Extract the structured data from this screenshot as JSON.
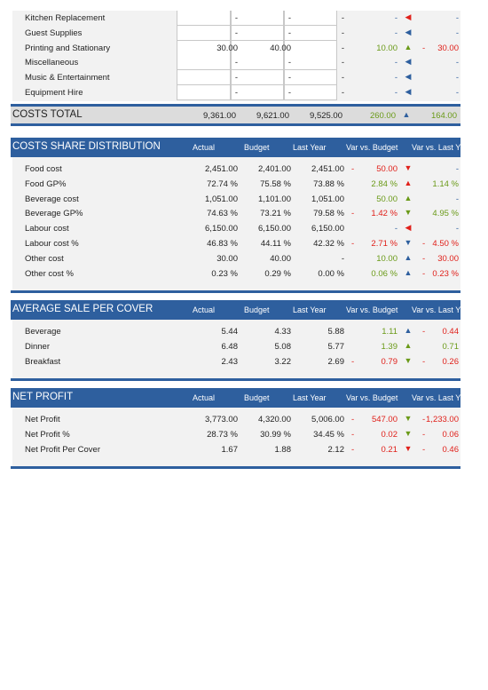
{
  "cost_rows": [
    {
      "label": "Kitchen Replacement",
      "actual": "-",
      "budget": "-",
      "last_year": "-",
      "var_budget": "-",
      "var_budget_dash": "",
      "var_budget_color": "blue",
      "arrow": "◀",
      "arrow_color": "red",
      "var_ly_dash": "",
      "var_ly": "-",
      "var_ly_color": "blue"
    },
    {
      "label": "Guest Supplies",
      "actual": "-",
      "budget": "-",
      "last_year": "-",
      "var_budget": "-",
      "var_budget_dash": "",
      "var_budget_color": "blue",
      "arrow": "◀",
      "arrow_color": "blue",
      "var_ly_dash": "",
      "var_ly": "-",
      "var_ly_color": "blue"
    },
    {
      "label": "Printing and Stationary",
      "actual": "30.00",
      "budget": "40.00",
      "last_year": "-",
      "var_budget": "10.00",
      "var_budget_dash": "",
      "var_budget_color": "green",
      "arrow": "▲",
      "arrow_color": "green",
      "var_ly_dash": "-",
      "var_ly": "30.00",
      "var_ly_color": "red"
    },
    {
      "label": "Miscellaneous",
      "actual": "-",
      "budget": "-",
      "last_year": "-",
      "var_budget": "-",
      "var_budget_dash": "",
      "var_budget_color": "blue",
      "arrow": "◀",
      "arrow_color": "blue",
      "var_ly_dash": "",
      "var_ly": "-",
      "var_ly_color": "blue"
    },
    {
      "label": "Music & Entertainment",
      "actual": "-",
      "budget": "-",
      "last_year": "-",
      "var_budget": "-",
      "var_budget_dash": "",
      "var_budget_color": "blue",
      "arrow": "◀",
      "arrow_color": "blue",
      "var_ly_dash": "",
      "var_ly": "-",
      "var_ly_color": "blue"
    },
    {
      "label": "Equipment Hire",
      "actual": "-",
      "budget": "-",
      "last_year": "-",
      "var_budget": "-",
      "var_budget_dash": "",
      "var_budget_color": "blue",
      "arrow": "◀",
      "arrow_color": "blue",
      "var_ly_dash": "",
      "var_ly": "-",
      "var_ly_color": "blue"
    }
  ],
  "costs_total": {
    "label": "COSTS TOTAL",
    "actual": "9,361.00",
    "budget": "9,621.00",
    "last_year": "9,525.00",
    "var_budget": "260.00",
    "arrow": "▲",
    "var_ly": "164.00"
  },
  "column_headers": {
    "actual": "Actual",
    "budget": "Budget",
    "last_year": "Last Year",
    "var_budget": "Var vs. Budget",
    "var_ly": "Var vs. Last Y"
  },
  "sections": [
    {
      "title": "COSTS SHARE DISTRIBUTION",
      "rows": [
        {
          "label": "Food cost",
          "actual": "2,451.00",
          "budget": "2,401.00",
          "last_year": "2,451.00",
          "var_budget_dash": "-",
          "var_budget": "50.00",
          "var_budget_color": "red",
          "arrow": "▼",
          "arrow_color": "red",
          "var_ly_dash": "",
          "var_ly": "-",
          "var_ly_color": "blue"
        },
        {
          "label": "Food GP%",
          "actual": "72.74 %",
          "budget": "75.58 %",
          "last_year": "73.88 %",
          "var_budget_dash": "",
          "var_budget": "2.84 %",
          "var_budget_color": "green",
          "arrow": "▲",
          "arrow_color": "red",
          "var_ly_dash": "",
          "var_ly": "1.14 %",
          "var_ly_color": "green"
        },
        {
          "label": "Beverage cost",
          "actual": "1,051.00",
          "budget": "1,101.00",
          "last_year": "1,051.00",
          "var_budget_dash": "",
          "var_budget": "50.00",
          "var_budget_color": "green",
          "arrow": "▲",
          "arrow_color": "green",
          "var_ly_dash": "",
          "var_ly": "-",
          "var_ly_color": "blue"
        },
        {
          "label": "Beverage GP%",
          "actual": "74.63 %",
          "budget": "73.21 %",
          "last_year": "79.58 %",
          "var_budget_dash": "-",
          "var_budget": "1.42 %",
          "var_budget_color": "red",
          "arrow": "▼",
          "arrow_color": "green",
          "var_ly_dash": "",
          "var_ly": "4.95 %",
          "var_ly_color": "green"
        },
        {
          "label": "Labour cost",
          "actual": "6,150.00",
          "budget": "6,150.00",
          "last_year": "6,150.00",
          "var_budget_dash": "",
          "var_budget": "-",
          "var_budget_color": "blue",
          "arrow": "◀",
          "arrow_color": "red",
          "var_ly_dash": "",
          "var_ly": "-",
          "var_ly_color": "blue"
        },
        {
          "label": "Labour cost %",
          "actual": "46.83 %",
          "budget": "44.11 %",
          "last_year": "42.32 %",
          "var_budget_dash": "-",
          "var_budget": "2.71 %",
          "var_budget_color": "red",
          "arrow": "▼",
          "arrow_color": "blue",
          "var_ly_dash": "-",
          "var_ly": "4.50 %",
          "var_ly_color": "red"
        },
        {
          "label": "Other cost",
          "actual": "30.00",
          "budget": "40.00",
          "last_year": "-",
          "var_budget_dash": "",
          "var_budget": "10.00",
          "var_budget_color": "green",
          "arrow": "▲",
          "arrow_color": "blue",
          "var_ly_dash": "-",
          "var_ly": "30.00",
          "var_ly_color": "red"
        },
        {
          "label": "Other cost %",
          "actual": "0.23 %",
          "budget": "0.29 %",
          "last_year": "0.00 %",
          "var_budget_dash": "",
          "var_budget": "0.06 %",
          "var_budget_color": "green",
          "arrow": "▲",
          "arrow_color": "blue",
          "var_ly_dash": "-",
          "var_ly": "0.23 %",
          "var_ly_color": "red"
        }
      ]
    },
    {
      "title": "AVERAGE SALE PER COVER",
      "rows": [
        {
          "label": "Beverage",
          "actual": "5.44",
          "budget": "4.33",
          "last_year": "5.88",
          "var_budget_dash": "",
          "var_budget": "1.11",
          "var_budget_color": "green",
          "arrow": "▲",
          "arrow_color": "blue",
          "var_ly_dash": "-",
          "var_ly": "0.44",
          "var_ly_color": "red"
        },
        {
          "label": "Dinner",
          "actual": "6.48",
          "budget": "5.08",
          "last_year": "5.77",
          "var_budget_dash": "",
          "var_budget": "1.39",
          "var_budget_color": "green",
          "arrow": "▲",
          "arrow_color": "green",
          "var_ly_dash": "",
          "var_ly": "0.71",
          "var_ly_color": "green"
        },
        {
          "label": "Breakfast",
          "actual": "2.43",
          "budget": "3.22",
          "last_year": "2.69",
          "var_budget_dash": "-",
          "var_budget": "0.79",
          "var_budget_color": "red",
          "arrow": "▼",
          "arrow_color": "green",
          "var_ly_dash": "-",
          "var_ly": "0.26",
          "var_ly_color": "red"
        }
      ]
    },
    {
      "title": "NET PROFIT",
      "rows": [
        {
          "label": "Net Profit",
          "actual": "3,773.00",
          "budget": "4,320.00",
          "last_year": "5,006.00",
          "var_budget_dash": "-",
          "var_budget": "547.00",
          "var_budget_color": "red",
          "arrow": "▼",
          "arrow_color": "green",
          "var_ly_dash": "-",
          "var_ly": "1,233.00",
          "var_ly_color": "red"
        },
        {
          "label": "Net Profit %",
          "actual": "28.73 %",
          "budget": "30.99 %",
          "last_year": "34.45 %",
          "var_budget_dash": "-",
          "var_budget": "0.02",
          "var_budget_color": "red",
          "arrow": "▼",
          "arrow_color": "green",
          "var_ly_dash": "-",
          "var_ly": "0.06",
          "var_ly_color": "red"
        },
        {
          "label": "Net Profit Per Cover",
          "actual": "1.67",
          "budget": "1.88",
          "last_year": "2.12",
          "var_budget_dash": "-",
          "var_budget": "0.21",
          "var_budget_color": "red",
          "arrow": "▼",
          "arrow_color": "red",
          "var_ly_dash": "-",
          "var_ly": "0.46",
          "var_ly_color": "red"
        }
      ]
    }
  ]
}
